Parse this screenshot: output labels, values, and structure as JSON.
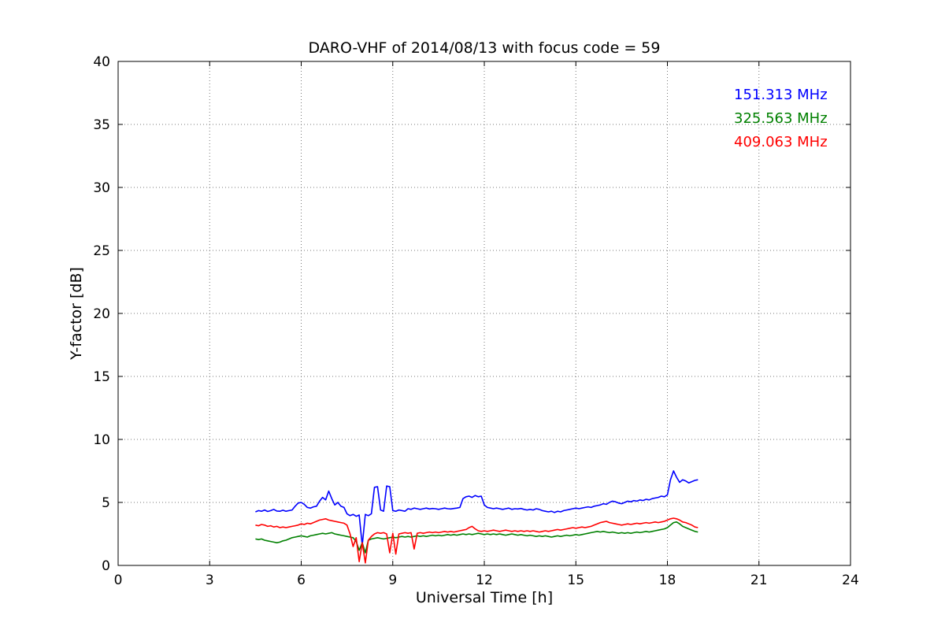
{
  "chart_data": {
    "type": "line",
    "title": "DARO-VHF of 2014/08/13 with focus code = 59",
    "xlabel": "Universal Time [h]",
    "ylabel": "Y-factor [dB]",
    "xlim": [
      0,
      24
    ],
    "ylim": [
      0,
      40
    ],
    "xticks": [
      0,
      3,
      6,
      9,
      12,
      15,
      18,
      21,
      24
    ],
    "yticks": [
      0,
      5,
      10,
      15,
      20,
      25,
      30,
      35,
      40
    ],
    "grid": "dotted",
    "legend_position": "upper right",
    "x": [
      4.5,
      4.6,
      4.7,
      4.8,
      4.9,
      5.0,
      5.1,
      5.2,
      5.3,
      5.4,
      5.5,
      5.6,
      5.7,
      5.8,
      5.9,
      6.0,
      6.1,
      6.2,
      6.3,
      6.4,
      6.5,
      6.6,
      6.7,
      6.8,
      6.9,
      7.0,
      7.1,
      7.2,
      7.3,
      7.4,
      7.5,
      7.6,
      7.7,
      7.8,
      7.9,
      8.0,
      8.1,
      8.2,
      8.3,
      8.4,
      8.5,
      8.6,
      8.7,
      8.8,
      8.9,
      9.0,
      9.1,
      9.2,
      9.3,
      9.4,
      9.5,
      9.6,
      9.7,
      9.8,
      9.9,
      10.0,
      10.1,
      10.2,
      10.3,
      10.4,
      10.5,
      10.6,
      10.7,
      10.8,
      10.9,
      11.0,
      11.1,
      11.2,
      11.3,
      11.4,
      11.5,
      11.6,
      11.7,
      11.8,
      11.9,
      12.0,
      12.1,
      12.2,
      12.3,
      12.4,
      12.5,
      12.6,
      12.7,
      12.8,
      12.9,
      13.0,
      13.1,
      13.2,
      13.3,
      13.4,
      13.5,
      13.6,
      13.7,
      13.8,
      13.9,
      14.0,
      14.1,
      14.2,
      14.3,
      14.4,
      14.5,
      14.6,
      14.7,
      14.8,
      14.9,
      15.0,
      15.1,
      15.2,
      15.3,
      15.4,
      15.5,
      15.6,
      15.7,
      15.8,
      15.9,
      16.0,
      16.1,
      16.2,
      16.3,
      16.4,
      16.5,
      16.6,
      16.7,
      16.8,
      16.9,
      17.0,
      17.1,
      17.2,
      17.3,
      17.4,
      17.5,
      17.6,
      17.7,
      17.8,
      17.9,
      18.0,
      18.1,
      18.2,
      18.3,
      18.4,
      18.5,
      18.6,
      18.7,
      18.8,
      18.9,
      19.0
    ],
    "series": [
      {
        "name": "151.313 MHz",
        "color": "#0000ff",
        "values": [
          4.25,
          4.35,
          4.3,
          4.4,
          4.28,
          4.35,
          4.45,
          4.32,
          4.3,
          4.38,
          4.3,
          4.35,
          4.4,
          4.7,
          4.95,
          5.0,
          4.85,
          4.6,
          4.55,
          4.65,
          4.7,
          5.1,
          5.4,
          5.2,
          5.9,
          5.3,
          4.8,
          5.0,
          4.7,
          4.6,
          4.1,
          3.95,
          4.05,
          3.9,
          4.0,
          1.6,
          4.05,
          3.95,
          4.1,
          6.2,
          6.25,
          4.4,
          4.3,
          6.3,
          6.25,
          4.35,
          4.3,
          4.4,
          4.35,
          4.3,
          4.5,
          4.45,
          4.55,
          4.5,
          4.45,
          4.5,
          4.55,
          4.48,
          4.52,
          4.5,
          4.45,
          4.5,
          4.55,
          4.5,
          4.48,
          4.52,
          4.55,
          4.6,
          5.3,
          5.45,
          5.5,
          5.4,
          5.55,
          5.45,
          5.5,
          4.8,
          4.6,
          4.55,
          4.5,
          4.55,
          4.5,
          4.45,
          4.5,
          4.55,
          4.45,
          4.5,
          4.48,
          4.52,
          4.45,
          4.4,
          4.45,
          4.4,
          4.5,
          4.45,
          4.35,
          4.3,
          4.25,
          4.3,
          4.2,
          4.3,
          4.25,
          4.35,
          4.4,
          4.45,
          4.5,
          4.55,
          4.5,
          4.55,
          4.6,
          4.65,
          4.6,
          4.7,
          4.75,
          4.8,
          4.9,
          4.85,
          5.0,
          5.1,
          5.05,
          4.95,
          4.9,
          5.0,
          5.1,
          5.05,
          5.15,
          5.1,
          5.2,
          5.15,
          5.25,
          5.2,
          5.3,
          5.35,
          5.4,
          5.5,
          5.45,
          5.6,
          6.8,
          7.5,
          7.0,
          6.6,
          6.8,
          6.7,
          6.55,
          6.65,
          6.75,
          6.8
        ]
      },
      {
        "name": "325.563 MHz",
        "color": "#008000",
        "values": [
          2.1,
          2.05,
          2.1,
          2.0,
          1.95,
          1.9,
          1.85,
          1.8,
          1.85,
          1.95,
          2.0,
          2.1,
          2.2,
          2.25,
          2.3,
          2.35,
          2.3,
          2.25,
          2.35,
          2.4,
          2.45,
          2.5,
          2.55,
          2.5,
          2.55,
          2.6,
          2.5,
          2.45,
          2.4,
          2.35,
          2.3,
          2.25,
          2.2,
          1.9,
          1.2,
          1.8,
          1.0,
          2.0,
          2.1,
          2.15,
          2.2,
          2.15,
          2.1,
          2.15,
          2.2,
          2.25,
          2.2,
          2.25,
          2.3,
          2.25,
          2.3,
          2.25,
          2.3,
          2.35,
          2.3,
          2.35,
          2.3,
          2.35,
          2.4,
          2.35,
          2.4,
          2.35,
          2.4,
          2.45,
          2.4,
          2.45,
          2.4,
          2.45,
          2.5,
          2.45,
          2.5,
          2.45,
          2.5,
          2.55,
          2.5,
          2.45,
          2.5,
          2.45,
          2.5,
          2.45,
          2.5,
          2.45,
          2.4,
          2.45,
          2.5,
          2.45,
          2.4,
          2.45,
          2.4,
          2.35,
          2.4,
          2.35,
          2.3,
          2.35,
          2.3,
          2.35,
          2.3,
          2.25,
          2.3,
          2.35,
          2.3,
          2.35,
          2.4,
          2.35,
          2.4,
          2.45,
          2.4,
          2.45,
          2.5,
          2.55,
          2.6,
          2.65,
          2.7,
          2.65,
          2.7,
          2.65,
          2.6,
          2.65,
          2.6,
          2.55,
          2.6,
          2.55,
          2.6,
          2.55,
          2.6,
          2.65,
          2.6,
          2.65,
          2.7,
          2.65,
          2.7,
          2.75,
          2.8,
          2.85,
          2.9,
          3.0,
          3.2,
          3.4,
          3.45,
          3.3,
          3.1,
          3.0,
          2.9,
          2.8,
          2.7,
          2.65
        ]
      },
      {
        "name": "409.063 MHz",
        "color": "#ff0000",
        "values": [
          3.2,
          3.15,
          3.25,
          3.2,
          3.1,
          3.15,
          3.05,
          3.1,
          3.0,
          3.05,
          3.0,
          3.05,
          3.1,
          3.15,
          3.2,
          3.3,
          3.25,
          3.35,
          3.3,
          3.4,
          3.5,
          3.6,
          3.65,
          3.7,
          3.6,
          3.55,
          3.5,
          3.45,
          3.4,
          3.35,
          3.2,
          2.5,
          1.5,
          2.2,
          0.3,
          1.8,
          0.2,
          2.0,
          2.3,
          2.5,
          2.6,
          2.55,
          2.6,
          2.5,
          1.0,
          2.55,
          0.9,
          2.5,
          2.55,
          2.6,
          2.55,
          2.6,
          1.3,
          2.55,
          2.6,
          2.55,
          2.6,
          2.65,
          2.6,
          2.65,
          2.6,
          2.65,
          2.7,
          2.65,
          2.7,
          2.65,
          2.7,
          2.75,
          2.8,
          2.85,
          3.0,
          3.1,
          2.9,
          2.75,
          2.7,
          2.75,
          2.7,
          2.75,
          2.8,
          2.75,
          2.7,
          2.75,
          2.8,
          2.75,
          2.7,
          2.75,
          2.7,
          2.75,
          2.7,
          2.75,
          2.7,
          2.75,
          2.7,
          2.65,
          2.7,
          2.75,
          2.7,
          2.75,
          2.8,
          2.85,
          2.8,
          2.85,
          2.9,
          2.95,
          3.0,
          2.95,
          3.0,
          3.05,
          3.0,
          3.05,
          3.1,
          3.2,
          3.3,
          3.4,
          3.45,
          3.5,
          3.4,
          3.35,
          3.3,
          3.25,
          3.2,
          3.25,
          3.3,
          3.25,
          3.3,
          3.35,
          3.3,
          3.35,
          3.4,
          3.35,
          3.4,
          3.45,
          3.4,
          3.45,
          3.5,
          3.6,
          3.7,
          3.75,
          3.7,
          3.6,
          3.45,
          3.4,
          3.3,
          3.2,
          3.05,
          3.0
        ]
      }
    ]
  }
}
